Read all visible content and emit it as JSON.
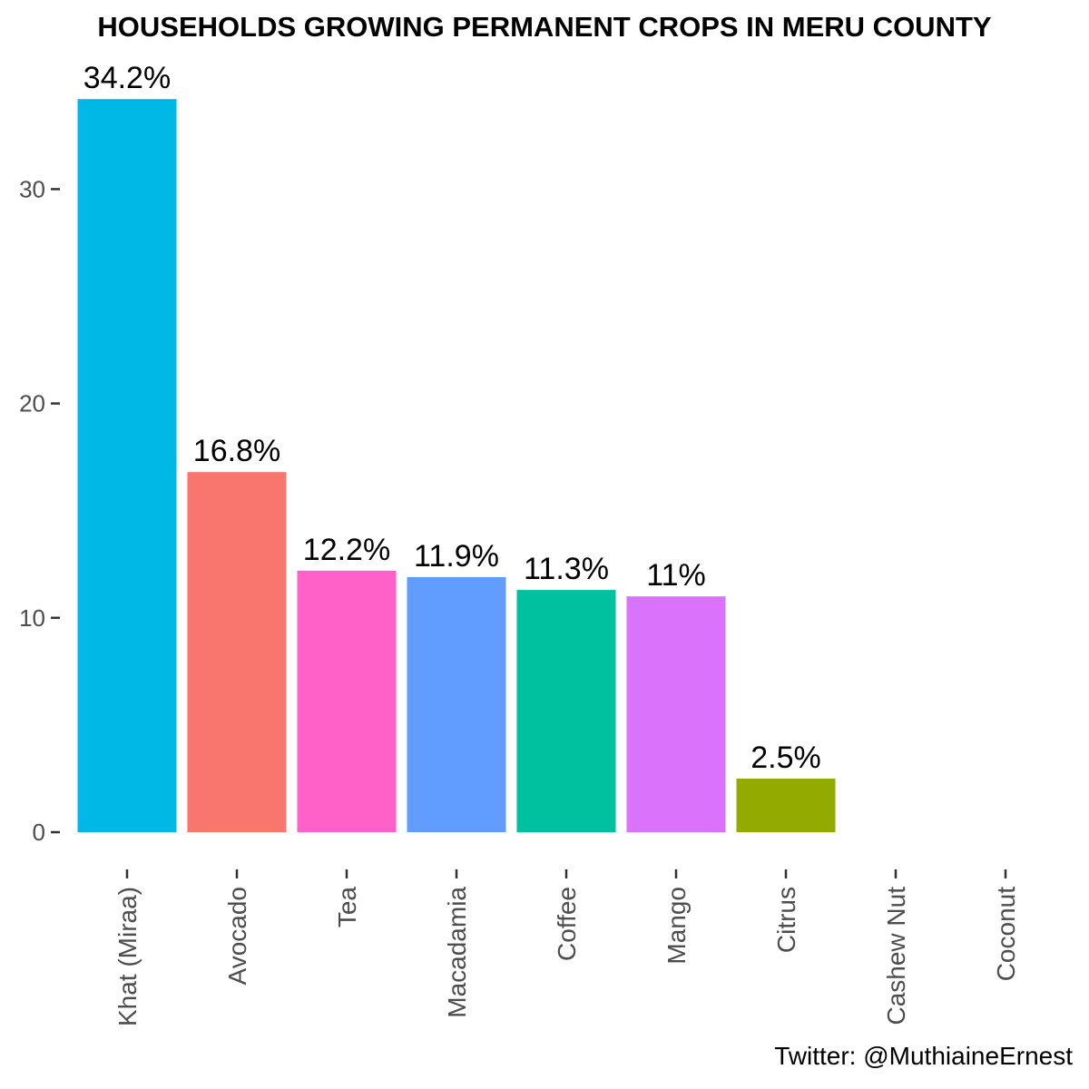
{
  "chart_data": {
    "type": "bar",
    "title": "HOUSEHOLDS GROWING PERMANENT CROPS IN MERU COUNTY",
    "xlabel": "",
    "ylabel": "",
    "categories": [
      "Khat (Miraa)",
      "Avocado",
      "Tea",
      "Macadamia",
      "Coffee",
      "Mango",
      "Citrus",
      "Cashew Nut",
      "Coconut"
    ],
    "values": [
      34.2,
      16.8,
      12.2,
      11.9,
      11.3,
      11,
      2.5,
      0,
      0
    ],
    "labels": [
      "34.2%",
      "16.8%",
      "12.2%",
      "11.9%",
      "11.3%",
      "11%",
      "2.5%",
      "",
      ""
    ],
    "colors": [
      "#00B8E5",
      "#F8766D",
      "#FF61C9",
      "#619CFF",
      "#00C19F",
      "#DB72FB",
      "#93AA00",
      "#00BA38",
      "#D39200"
    ],
    "yticks": [
      0,
      10,
      20,
      30
    ],
    "ylim": [
      0,
      36
    ],
    "grid": false,
    "legend": "none"
  },
  "caption": "Twitter: @MuthiaineErnest"
}
